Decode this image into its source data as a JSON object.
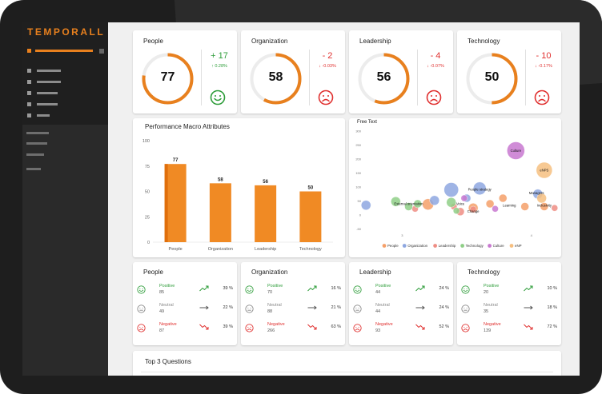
{
  "app": {
    "logo_text": "TEMPORALL",
    "accent": "#e8801e"
  },
  "kpis": [
    {
      "title": "People",
      "value": "77",
      "fraction": 0.77,
      "delta": "+ 17",
      "delta_pct": "↑ 0.28%",
      "trend": "positive",
      "face": "happy-face-icon"
    },
    {
      "title": "Organization",
      "value": "58",
      "fraction": 0.58,
      "delta": "- 2",
      "delta_pct": "↓ -0.03%",
      "trend": "negative",
      "face": "sad-face-icon"
    },
    {
      "title": "Leadership",
      "value": "56",
      "fraction": 0.56,
      "delta": "- 4",
      "delta_pct": "↓ -0.07%",
      "trend": "negative",
      "face": "sad-face-icon"
    },
    {
      "title": "Technology",
      "value": "50",
      "fraction": 0.5,
      "delta": "- 10",
      "delta_pct": "↓ -0.17%",
      "trend": "negative",
      "face": "sad-face-icon"
    }
  ],
  "panels": {
    "macro_title": "Performance Macro Attributes",
    "free_text_title": "Free Text",
    "top3_title": "Top 3 Questions"
  },
  "chart_data": [
    {
      "type": "bar",
      "title": "Performance Macro Attributes",
      "categories": [
        "People",
        "Organization",
        "Leadership",
        "Technology"
      ],
      "values": [
        77,
        58,
        56,
        50
      ],
      "ylim": [
        0,
        100
      ],
      "yticks": [
        0,
        25,
        50,
        75,
        100
      ],
      "color": "#f08a24",
      "grid": false
    },
    {
      "type": "scatter",
      "title": "Free Text",
      "xlim": [
        2.7,
        4.2
      ],
      "ylim": [
        -60,
        300
      ],
      "xticks": [
        3,
        4
      ],
      "yticks": [
        -50,
        0,
        50,
        100,
        150,
        200,
        250,
        300
      ],
      "legend_position": "bottom",
      "series": [
        {
          "name": "People",
          "color": "#f5a06a",
          "points": [
            {
              "x": 3.2,
              "y": 38,
              "r": 7
            },
            {
              "x": 3.55,
              "y": 25,
              "r": 6
            },
            {
              "x": 3.68,
              "y": 40,
              "r": 5
            },
            {
              "x": 3.95,
              "y": 30,
              "r": 5
            },
            {
              "x": 4.1,
              "y": 30,
              "r": 5
            },
            {
              "x": 3.78,
              "y": 60,
              "r": 5
            }
          ]
        },
        {
          "name": "Organization",
          "color": "#8ea7e0",
          "points": [
            {
              "x": 2.72,
              "y": 35,
              "r": 6
            },
            {
              "x": 3.25,
              "y": 52,
              "r": 6
            },
            {
              "x": 3.38,
              "y": 90,
              "r": 9
            },
            {
              "x": 3.6,
              "y": 95,
              "r": 8
            },
            {
              "x": 3.5,
              "y": 60,
              "r": 5
            },
            {
              "x": 4.05,
              "y": 75,
              "r": 6
            }
          ]
        },
        {
          "name": "Leadership",
          "color": "#ee8d84",
          "points": [
            {
              "x": 3.1,
              "y": 22,
              "r": 4
            },
            {
              "x": 3.4,
              "y": 30,
              "r": 4
            },
            {
              "x": 3.45,
              "y": 12,
              "r": 5
            },
            {
              "x": 3.55,
              "y": 20,
              "r": 4
            },
            {
              "x": 4.18,
              "y": 25,
              "r": 4
            }
          ]
        },
        {
          "name": "Technology",
          "color": "#8fcf87",
          "points": [
            {
              "x": 2.95,
              "y": 48,
              "r": 6
            },
            {
              "x": 3.05,
              "y": 30,
              "r": 5
            },
            {
              "x": 3.12,
              "y": 40,
              "r": 5
            },
            {
              "x": 3.38,
              "y": 45,
              "r": 6
            },
            {
              "x": 3.42,
              "y": 15,
              "r": 4
            }
          ]
        },
        {
          "name": "Culture",
          "color": "#c878d0",
          "points": [
            {
              "x": 3.88,
              "y": 230,
              "r": 11
            },
            {
              "x": 3.72,
              "y": 22,
              "r": 4
            },
            {
              "x": 3.48,
              "y": 60,
              "r": 4
            }
          ]
        },
        {
          "name": "eNP",
          "color": "#f6bf80",
          "points": [
            {
              "x": 4.1,
              "y": 160,
              "r": 10
            },
            {
              "x": 4.08,
              "y": 60,
              "r": 6
            }
          ]
        }
      ],
      "annotations": [
        {
          "text": "Culture",
          "x": 3.88,
          "y": 230
        },
        {
          "text": "eNPS",
          "x": 4.1,
          "y": 160
        },
        {
          "text": "People strategy",
          "x": 3.6,
          "y": 92
        },
        {
          "text": "Managers",
          "x": 4.04,
          "y": 78
        },
        {
          "text": "External orientation",
          "x": 3.05,
          "y": 40
        },
        {
          "text": "Voice",
          "x": 3.45,
          "y": 40
        },
        {
          "text": "Learning",
          "x": 3.83,
          "y": 35
        },
        {
          "text": "Inclusivity",
          "x": 4.1,
          "y": 35
        },
        {
          "text": "Change",
          "x": 3.55,
          "y": 13
        }
      ]
    }
  ],
  "sentiment_cards": [
    {
      "title": "People",
      "rows": [
        {
          "label": "Positive",
          "count": "85",
          "pct": "39 %",
          "kind": "positive"
        },
        {
          "label": "Neutral",
          "count": "49",
          "pct": "22 %",
          "kind": "neutral"
        },
        {
          "label": "Negative",
          "count": "87",
          "pct": "39 %",
          "kind": "negative"
        }
      ]
    },
    {
      "title": "Organization",
      "rows": [
        {
          "label": "Positive",
          "count": "70",
          "pct": "16 %",
          "kind": "positive"
        },
        {
          "label": "Neutral",
          "count": "88",
          "pct": "21 %",
          "kind": "neutral"
        },
        {
          "label": "Negative",
          "count": "266",
          "pct": "63 %",
          "kind": "negative"
        }
      ]
    },
    {
      "title": "Leadership",
      "rows": [
        {
          "label": "Positive",
          "count": "44",
          "pct": "24 %",
          "kind": "positive"
        },
        {
          "label": "Neutral",
          "count": "44",
          "pct": "24 %",
          "kind": "neutral"
        },
        {
          "label": "Negative",
          "count": "93",
          "pct": "52 %",
          "kind": "negative"
        }
      ]
    },
    {
      "title": "Technology",
      "rows": [
        {
          "label": "Positive",
          "count": "20",
          "pct": "10 %",
          "kind": "positive"
        },
        {
          "label": "Neutral",
          "count": "35",
          "pct": "18 %",
          "kind": "neutral"
        },
        {
          "label": "Negative",
          "count": "139",
          "pct": "72 %",
          "kind": "negative"
        }
      ]
    }
  ],
  "colors": {
    "positive": "#2e9d3a",
    "neutral": "#888888",
    "negative": "#e0302f",
    "ring_track": "#ececec"
  }
}
